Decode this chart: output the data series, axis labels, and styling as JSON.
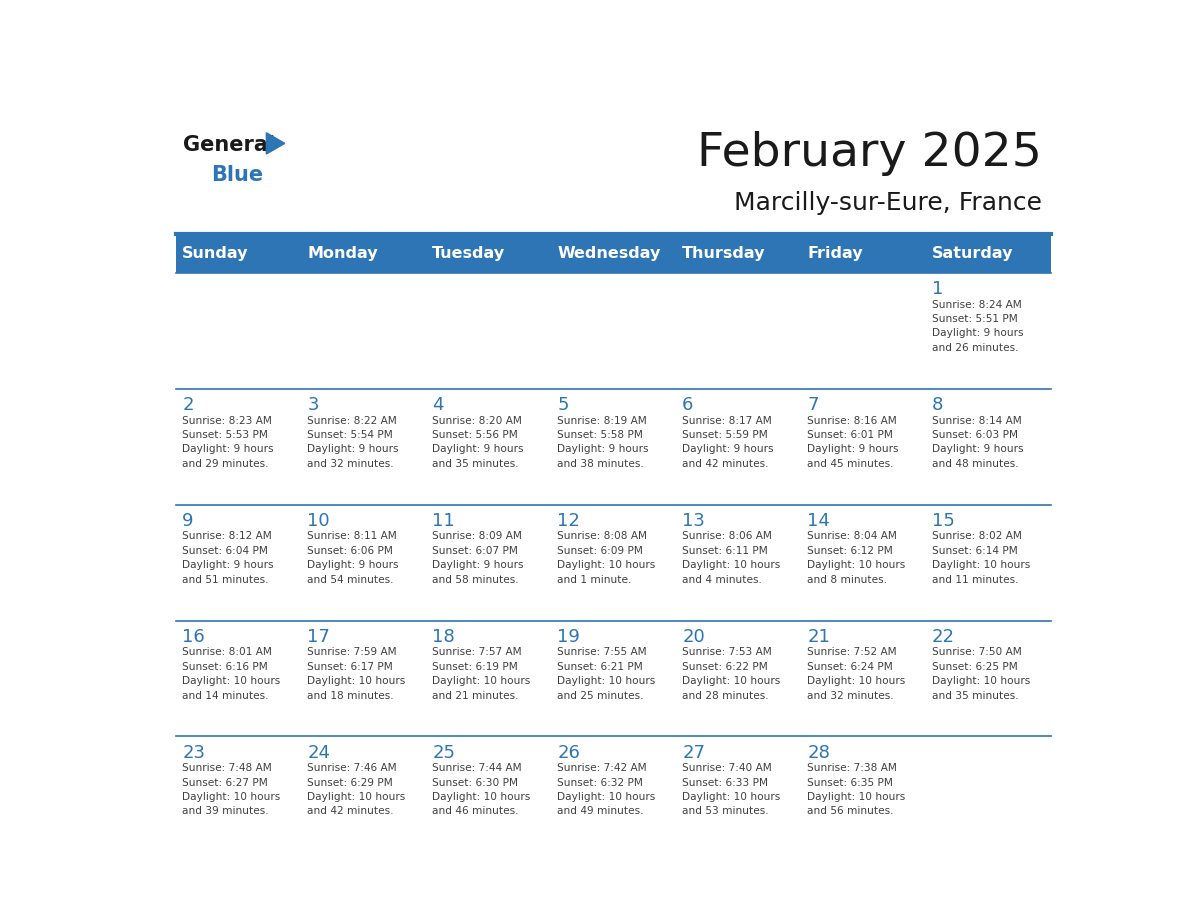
{
  "title": "February 2025",
  "subtitle": "Marcilly-sur-Eure, France",
  "days_of_week": [
    "Sunday",
    "Monday",
    "Tuesday",
    "Wednesday",
    "Thursday",
    "Friday",
    "Saturday"
  ],
  "header_bg": "#2E75B6",
  "header_text": "#FFFFFF",
  "cell_bg_light": "#FFFFFF",
  "day_number_color": "#2E75B6",
  "text_color": "#404040",
  "line_color": "#2E75B6",
  "calendar_data": [
    [
      null,
      null,
      null,
      null,
      null,
      null,
      {
        "day": 1,
        "sunrise": "8:24 AM",
        "sunset": "5:51 PM",
        "daylight": "9 hours\nand 26 minutes."
      }
    ],
    [
      {
        "day": 2,
        "sunrise": "8:23 AM",
        "sunset": "5:53 PM",
        "daylight": "9 hours\nand 29 minutes."
      },
      {
        "day": 3,
        "sunrise": "8:22 AM",
        "sunset": "5:54 PM",
        "daylight": "9 hours\nand 32 minutes."
      },
      {
        "day": 4,
        "sunrise": "8:20 AM",
        "sunset": "5:56 PM",
        "daylight": "9 hours\nand 35 minutes."
      },
      {
        "day": 5,
        "sunrise": "8:19 AM",
        "sunset": "5:58 PM",
        "daylight": "9 hours\nand 38 minutes."
      },
      {
        "day": 6,
        "sunrise": "8:17 AM",
        "sunset": "5:59 PM",
        "daylight": "9 hours\nand 42 minutes."
      },
      {
        "day": 7,
        "sunrise": "8:16 AM",
        "sunset": "6:01 PM",
        "daylight": "9 hours\nand 45 minutes."
      },
      {
        "day": 8,
        "sunrise": "8:14 AM",
        "sunset": "6:03 PM",
        "daylight": "9 hours\nand 48 minutes."
      }
    ],
    [
      {
        "day": 9,
        "sunrise": "8:12 AM",
        "sunset": "6:04 PM",
        "daylight": "9 hours\nand 51 minutes."
      },
      {
        "day": 10,
        "sunrise": "8:11 AM",
        "sunset": "6:06 PM",
        "daylight": "9 hours\nand 54 minutes."
      },
      {
        "day": 11,
        "sunrise": "8:09 AM",
        "sunset": "6:07 PM",
        "daylight": "9 hours\nand 58 minutes."
      },
      {
        "day": 12,
        "sunrise": "8:08 AM",
        "sunset": "6:09 PM",
        "daylight": "10 hours\nand 1 minute."
      },
      {
        "day": 13,
        "sunrise": "8:06 AM",
        "sunset": "6:11 PM",
        "daylight": "10 hours\nand 4 minutes."
      },
      {
        "day": 14,
        "sunrise": "8:04 AM",
        "sunset": "6:12 PM",
        "daylight": "10 hours\nand 8 minutes."
      },
      {
        "day": 15,
        "sunrise": "8:02 AM",
        "sunset": "6:14 PM",
        "daylight": "10 hours\nand 11 minutes."
      }
    ],
    [
      {
        "day": 16,
        "sunrise": "8:01 AM",
        "sunset": "6:16 PM",
        "daylight": "10 hours\nand 14 minutes."
      },
      {
        "day": 17,
        "sunrise": "7:59 AM",
        "sunset": "6:17 PM",
        "daylight": "10 hours\nand 18 minutes."
      },
      {
        "day": 18,
        "sunrise": "7:57 AM",
        "sunset": "6:19 PM",
        "daylight": "10 hours\nand 21 minutes."
      },
      {
        "day": 19,
        "sunrise": "7:55 AM",
        "sunset": "6:21 PM",
        "daylight": "10 hours\nand 25 minutes."
      },
      {
        "day": 20,
        "sunrise": "7:53 AM",
        "sunset": "6:22 PM",
        "daylight": "10 hours\nand 28 minutes."
      },
      {
        "day": 21,
        "sunrise": "7:52 AM",
        "sunset": "6:24 PM",
        "daylight": "10 hours\nand 32 minutes."
      },
      {
        "day": 22,
        "sunrise": "7:50 AM",
        "sunset": "6:25 PM",
        "daylight": "10 hours\nand 35 minutes."
      }
    ],
    [
      {
        "day": 23,
        "sunrise": "7:48 AM",
        "sunset": "6:27 PM",
        "daylight": "10 hours\nand 39 minutes."
      },
      {
        "day": 24,
        "sunrise": "7:46 AM",
        "sunset": "6:29 PM",
        "daylight": "10 hours\nand 42 minutes."
      },
      {
        "day": 25,
        "sunrise": "7:44 AM",
        "sunset": "6:30 PM",
        "daylight": "10 hours\nand 46 minutes."
      },
      {
        "day": 26,
        "sunrise": "7:42 AM",
        "sunset": "6:32 PM",
        "daylight": "10 hours\nand 49 minutes."
      },
      {
        "day": 27,
        "sunrise": "7:40 AM",
        "sunset": "6:33 PM",
        "daylight": "10 hours\nand 53 minutes."
      },
      {
        "day": 28,
        "sunrise": "7:38 AM",
        "sunset": "6:35 PM",
        "daylight": "10 hours\nand 56 minutes."
      },
      null
    ]
  ]
}
